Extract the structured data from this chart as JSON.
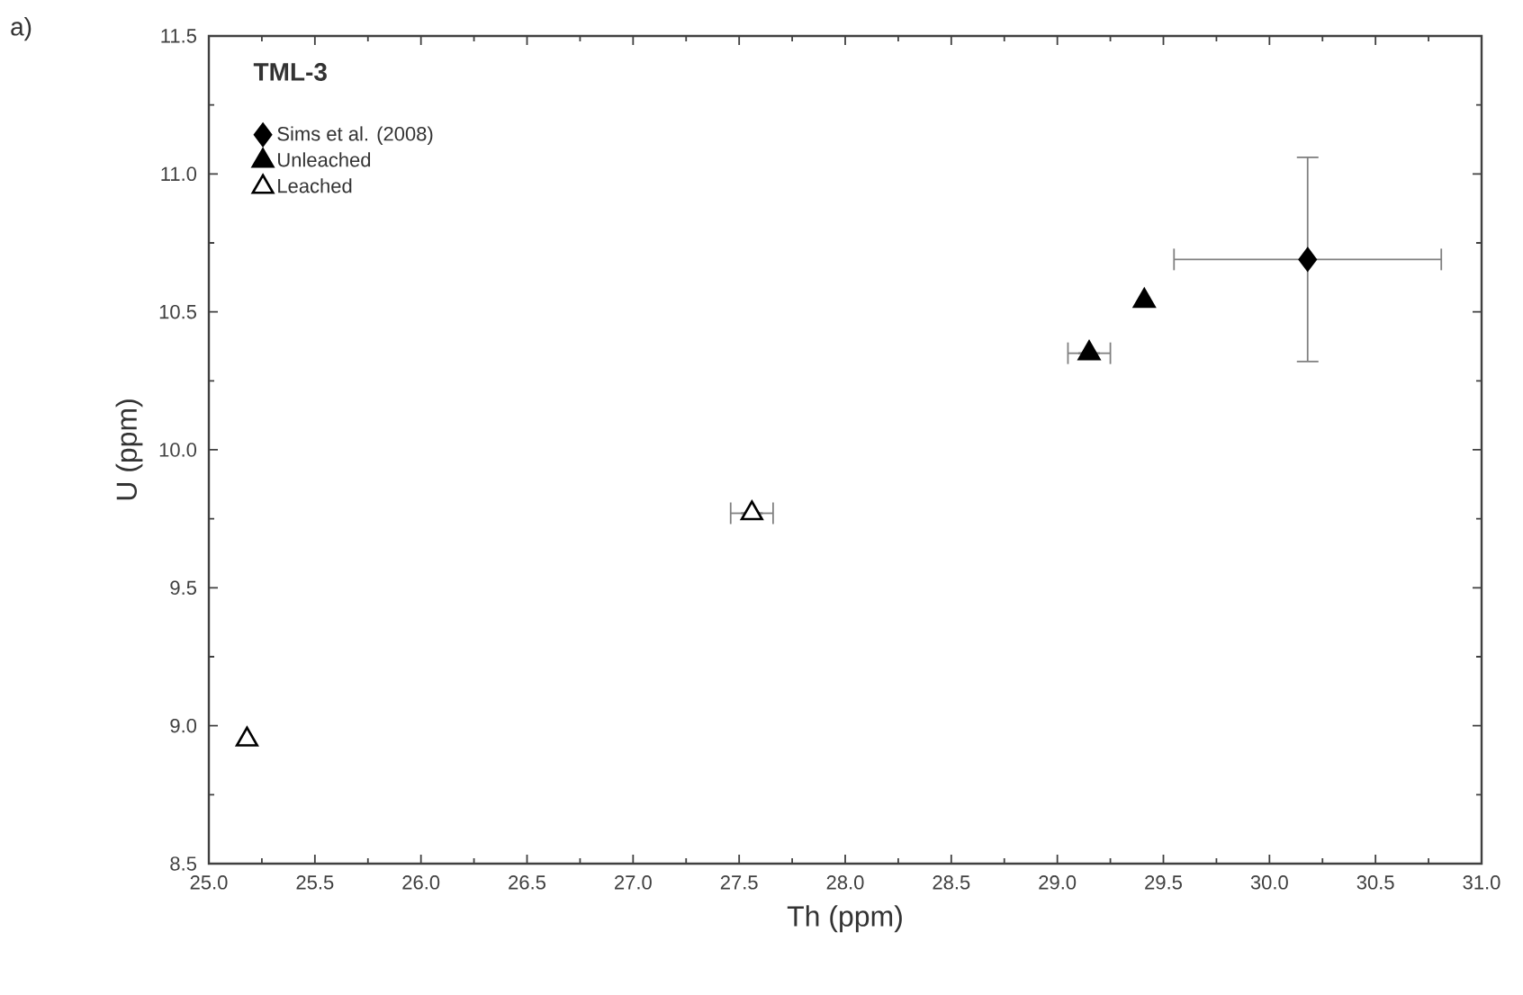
{
  "chart_data": {
    "type": "scatter",
    "title": "TML-3",
    "xlabel": "Th (ppm)",
    "ylabel": "U (ppm)",
    "annotations": [
      "a)"
    ],
    "xlim": [
      25.0,
      31.0
    ],
    "ylim": [
      8.5,
      11.5
    ],
    "xticks": [
      {
        "value": 25.0,
        "label": "25.0"
      },
      25.5,
      {
        "value": 26.0,
        "label": "26.0"
      },
      26.5,
      {
        "value": 27.0,
        "label": "27.0"
      },
      27.5,
      {
        "value": 28.0,
        "label": "28.0"
      },
      28.5,
      {
        "value": 29.0,
        "label": "29.0"
      },
      29.5,
      {
        "value": 30.0,
        "label": "30.0"
      },
      30.5,
      {
        "value": 31.0,
        "label": "31.0"
      }
    ],
    "yticks": [
      8.5,
      {
        "value": 9.0,
        "label": "9.0"
      },
      9.5,
      {
        "value": 10.0,
        "label": "10.0"
      },
      10.5,
      {
        "value": 11.0,
        "label": "11.0"
      },
      11.5
    ],
    "grid": false,
    "legend": "top left",
    "series": [
      {
        "name": "Sims et al. (2008)",
        "color": "#000000",
        "marker": "diamond",
        "x": [
          30.18
        ],
        "values": [
          10.69
        ],
        "errors": [
          0.37
        ],
        "xerrors": [
          0.63
        ]
      },
      {
        "name": "Unleached",
        "color": "#000000",
        "marker": "triangle",
        "x": [
          29.41,
          29.15
        ],
        "values": [
          10.54,
          10.35
        ],
        "xerrors": [
          null,
          0.1
        ]
      },
      {
        "name": "Leached",
        "color": "#ffffff",
        "marker": "triangle",
        "x": [
          27.56,
          25.18
        ],
        "values": [
          9.77,
          8.95
        ],
        "xerrors": [
          0.1,
          null
        ]
      }
    ]
  }
}
